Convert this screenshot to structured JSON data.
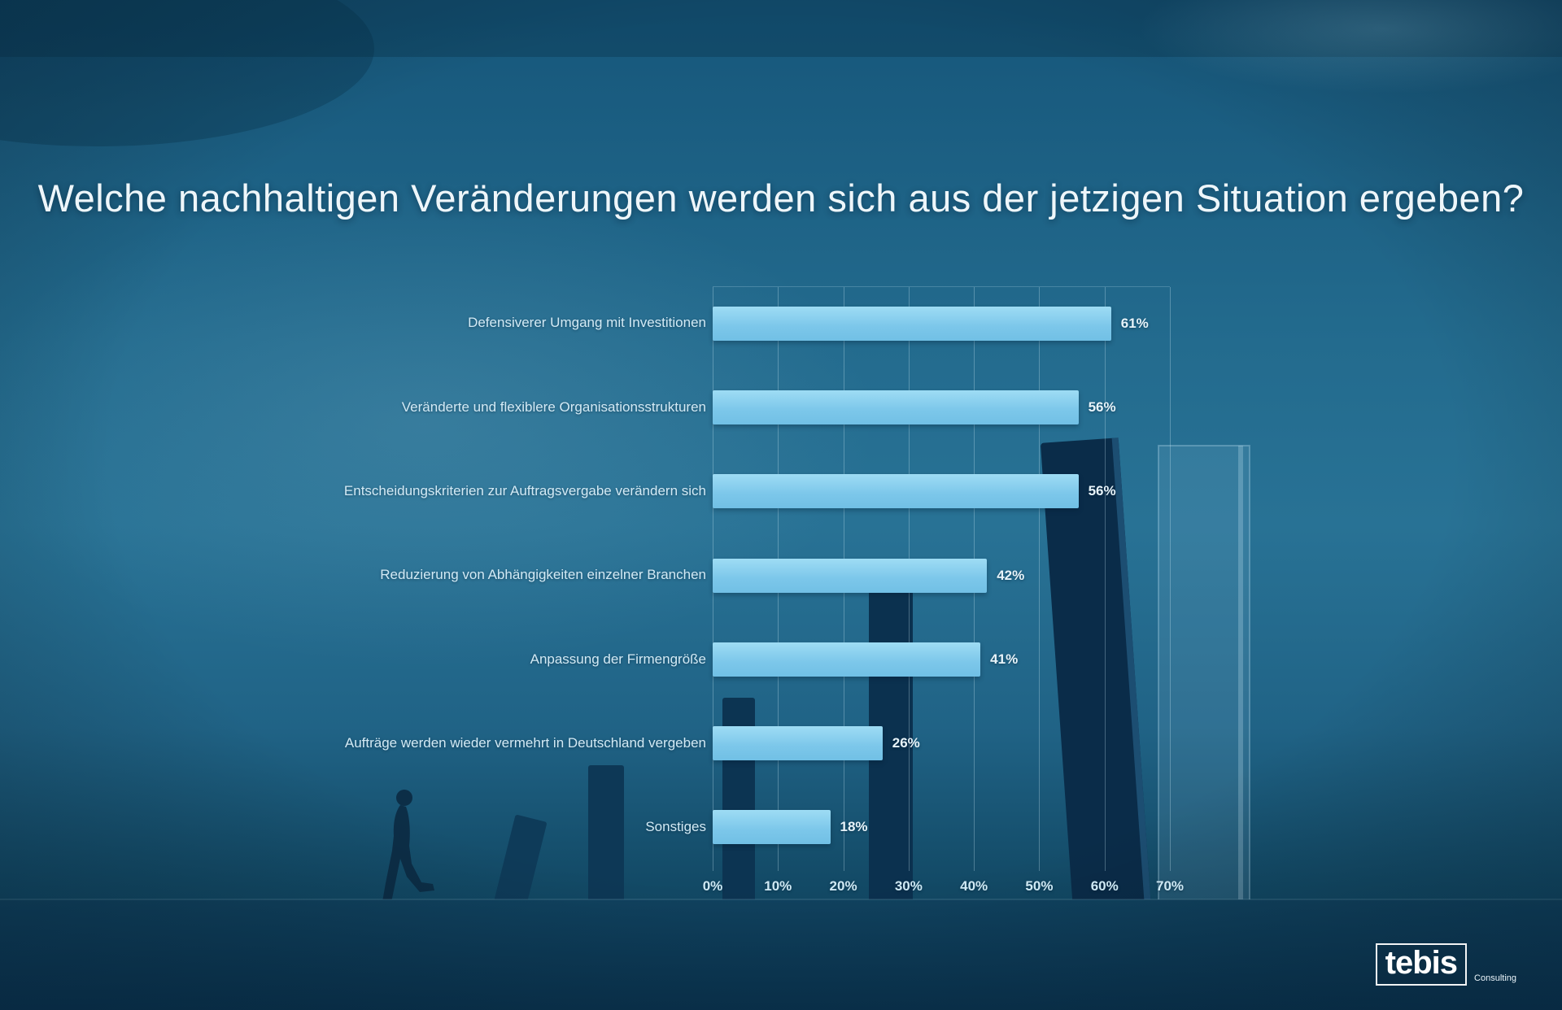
{
  "title": "Welche nachhaltigen Veränderungen werden sich aus der jetzigen Situation ergeben?",
  "logo": {
    "brand": "tebis",
    "sub": "Consulting"
  },
  "colors": {
    "bar": "#7cc7ea",
    "background_mid": "#287295",
    "background_dark": "#0d3f5b",
    "label_text": "#d3eaf5",
    "title_text": "#eef6fa"
  },
  "chart_data": {
    "type": "bar",
    "orientation": "horizontal",
    "title": "Welche nachhaltigen Veränderungen werden sich aus der jetzigen Situation ergeben?",
    "categories": [
      "Defensiverer Umgang mit Investitionen",
      "Veränderte und flexiblere Organisationsstrukturen",
      "Entscheidungskriterien zur Auftragsvergabe verändern sich",
      "Reduzierung von Abhängigkeiten einzelner Branchen",
      "Anpassung der Firmengröße",
      "Aufträge werden wieder vermehrt in Deutschland vergeben",
      "Sonstiges"
    ],
    "values": [
      61,
      56,
      56,
      42,
      41,
      26,
      18
    ],
    "value_labels": [
      "61%",
      "56%",
      "56%",
      "42%",
      "41%",
      "26%",
      "18%"
    ],
    "x_ticks": [
      "0%",
      "10%",
      "20%",
      "30%",
      "40%",
      "50%",
      "60%",
      "70%"
    ],
    "xlim": [
      0,
      70
    ],
    "xlabel": "",
    "ylabel": "",
    "grid": true,
    "legend": false,
    "bar_color": "#7cc7ea"
  }
}
